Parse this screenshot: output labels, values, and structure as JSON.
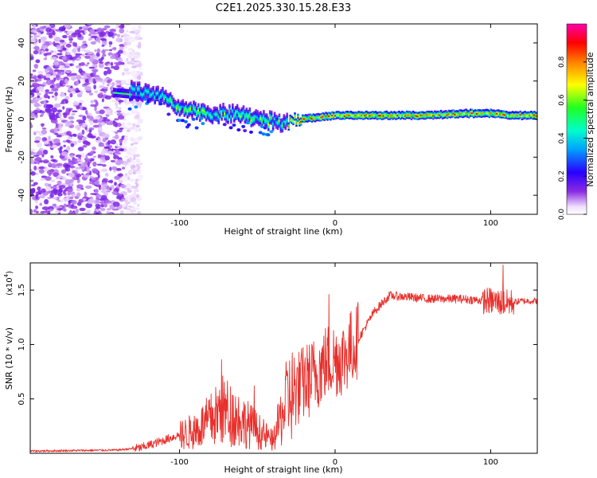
{
  "title": "C2E1.2025.330.15.28.E33",
  "colors": {
    "line": "#e8302c",
    "axis": "#000000",
    "background": "#ffffff"
  },
  "chart_data": [
    {
      "type": "heatmap",
      "title": "C2E1.2025.330.15.28.E33",
      "xlabel": "Height of straight line (km)",
      "ylabel": "Frequency (Hz)",
      "xlim": [
        -196,
        130
      ],
      "ylim": [
        -50,
        50
      ],
      "xticks": [
        -100,
        0,
        100
      ],
      "xtick_labels": [
        "-100",
        "0",
        "100"
      ],
      "yticks": [
        40,
        20,
        0,
        -20,
        -40
      ],
      "ytick_labels": [
        "40",
        "20",
        "0",
        "-20",
        "-40"
      ],
      "colorbar": {
        "label": "Normalized spectral amplitude",
        "range": [
          0,
          1
        ],
        "ticks": [
          0.0,
          0.2,
          0.4,
          0.6,
          0.8
        ],
        "tick_labels": [
          "0.0",
          "0.2",
          "0.4",
          "0.6",
          "0.8"
        ]
      },
      "ridge": {
        "description_points_height_km": [
          -142,
          -130,
          -120,
          -110,
          -100,
          -90,
          -80,
          -70,
          -60,
          -50,
          -40,
          -33,
          -25,
          -10,
          0,
          20,
          40,
          60,
          80,
          100,
          115,
          130
        ],
        "frequency_hz": [
          15,
          15,
          14,
          12,
          5,
          4,
          3,
          3,
          2,
          0,
          -1,
          -3,
          0,
          1,
          2,
          2,
          2,
          2,
          3,
          3,
          2,
          2
        ]
      }
    },
    {
      "type": "line",
      "xlabel": "Height of straight line (km)",
      "ylabel": "SNR (10 * v/v)",
      "y_multiplier_label": "(x10",
      "y_multiplier_exponent": "4",
      "xlim": [
        -196,
        130
      ],
      "ylim": [
        0,
        1.75
      ],
      "xticks": [
        -100,
        0,
        100
      ],
      "xtick_labels": [
        "-100",
        "0",
        "100"
      ],
      "yticks": [
        1.5,
        1.0,
        0.5
      ],
      "ytick_labels": [
        "1.5",
        "1.0",
        "0.5"
      ],
      "trend": {
        "x": [
          -196,
          -140,
          -125,
          -110,
          -90,
          -80,
          -72,
          -60,
          -50,
          -40,
          -30,
          -24,
          -15,
          -5,
          5,
          15,
          25,
          35,
          60,
          80,
          100,
          110,
          120,
          130
        ],
        "y": [
          0.02,
          0.03,
          0.05,
          0.12,
          0.22,
          0.32,
          0.42,
          0.32,
          0.22,
          0.12,
          0.55,
          0.6,
          0.7,
          0.85,
          0.88,
          1.05,
          1.3,
          1.45,
          1.42,
          1.42,
          1.4,
          1.38,
          1.4,
          1.4
        ]
      },
      "peaks": [
        {
          "x": -73,
          "y": 0.86
        },
        {
          "x": -52,
          "y": 0.62
        },
        {
          "x": -4,
          "y": 1.46
        },
        {
          "x": 108,
          "y": 1.73
        }
      ]
    }
  ]
}
